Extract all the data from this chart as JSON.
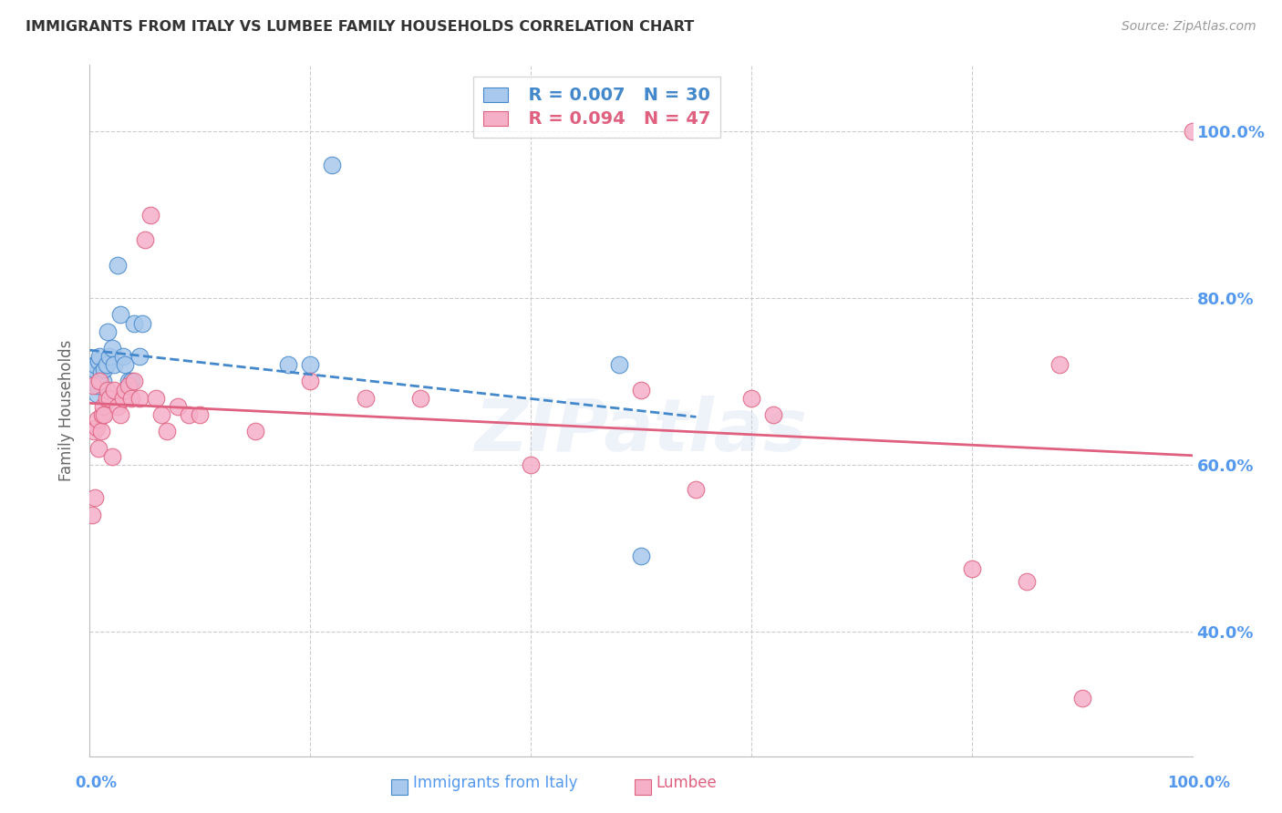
{
  "title": "IMMIGRANTS FROM ITALY VS LUMBEE FAMILY HOUSEHOLDS CORRELATION CHART",
  "source": "Source: ZipAtlas.com",
  "ylabel": "Family Households",
  "ytick_labels": [
    "100.0%",
    "80.0%",
    "60.0%",
    "40.0%"
  ],
  "ytick_values": [
    1.0,
    0.8,
    0.6,
    0.4
  ],
  "xlim": [
    0.0,
    1.0
  ],
  "ylim": [
    0.25,
    1.08
  ],
  "legend_blue_r": "R = 0.007",
  "legend_blue_n": "N = 30",
  "legend_pink_r": "R = 0.094",
  "legend_pink_n": "N = 47",
  "legend_label_blue": "Immigrants from Italy",
  "legend_label_pink": "Lumbee",
  "blue_color": "#a8c8ec",
  "pink_color": "#f5b0c8",
  "line_blue_color": "#4488cc",
  "line_pink_color": "#e06080",
  "blue_points_x": [
    0.002,
    0.003,
    0.004,
    0.005,
    0.006,
    0.007,
    0.008,
    0.009,
    0.01,
    0.012,
    0.013,
    0.015,
    0.016,
    0.018,
    0.02,
    0.022,
    0.025,
    0.028,
    0.03,
    0.032,
    0.035,
    0.038,
    0.04,
    0.045,
    0.048,
    0.18,
    0.2,
    0.22,
    0.48,
    0.5
  ],
  "blue_points_y": [
    0.7,
    0.71,
    0.715,
    0.72,
    0.685,
    0.695,
    0.725,
    0.73,
    0.71,
    0.7,
    0.715,
    0.72,
    0.76,
    0.73,
    0.74,
    0.72,
    0.84,
    0.78,
    0.73,
    0.72,
    0.7,
    0.7,
    0.77,
    0.73,
    0.77,
    0.72,
    0.72,
    0.96,
    0.72,
    0.49
  ],
  "pink_points_x": [
    0.002,
    0.003,
    0.004,
    0.005,
    0.006,
    0.007,
    0.008,
    0.009,
    0.01,
    0.011,
    0.012,
    0.013,
    0.015,
    0.016,
    0.018,
    0.02,
    0.022,
    0.025,
    0.028,
    0.03,
    0.032,
    0.035,
    0.038,
    0.04,
    0.045,
    0.05,
    0.055,
    0.06,
    0.065,
    0.07,
    0.08,
    0.09,
    0.1,
    0.15,
    0.2,
    0.25,
    0.3,
    0.4,
    0.5,
    0.55,
    0.6,
    0.62,
    0.8,
    0.85,
    0.88,
    0.9,
    1.0
  ],
  "pink_points_y": [
    0.54,
    0.695,
    0.64,
    0.56,
    0.645,
    0.655,
    0.62,
    0.7,
    0.64,
    0.66,
    0.67,
    0.66,
    0.68,
    0.69,
    0.68,
    0.61,
    0.69,
    0.67,
    0.66,
    0.68,
    0.69,
    0.695,
    0.68,
    0.7,
    0.68,
    0.87,
    0.9,
    0.68,
    0.66,
    0.64,
    0.67,
    0.66,
    0.66,
    0.64,
    0.7,
    0.68,
    0.68,
    0.6,
    0.69,
    0.57,
    0.68,
    0.66,
    0.475,
    0.46,
    0.72,
    0.32,
    1.0
  ],
  "grid_color": "#cccccc",
  "background_color": "#ffffff",
  "title_color": "#333333",
  "axis_label_color": "#5599ee",
  "watermark": "ZIPatlas"
}
